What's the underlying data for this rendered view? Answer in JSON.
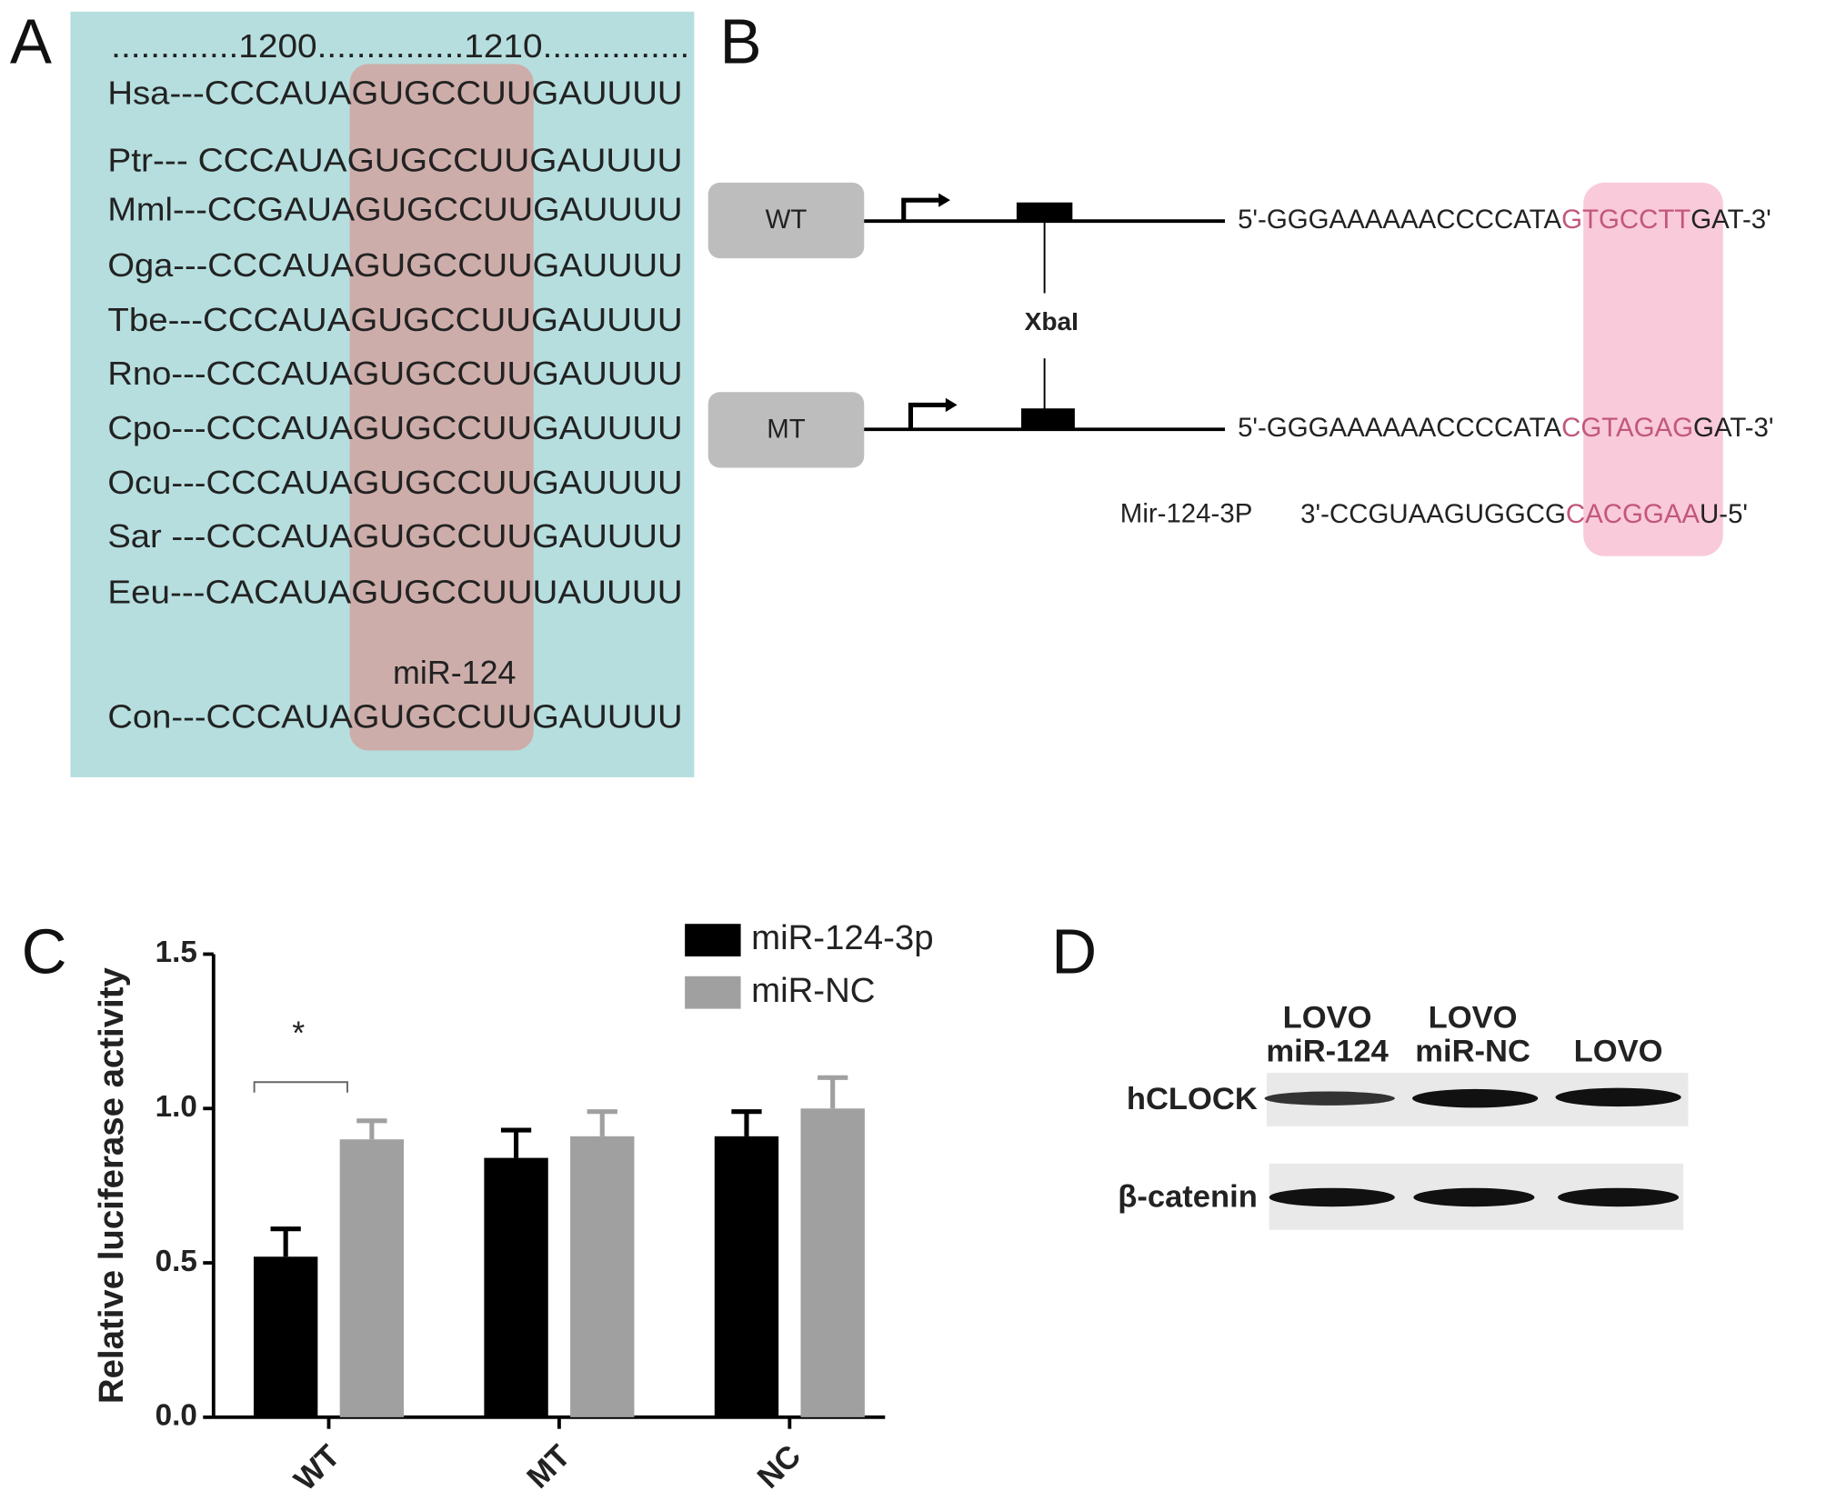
{
  "panel_labels": {
    "a": "A",
    "b": "B",
    "c": "C",
    "d": "D"
  },
  "panel_a": {
    "header": ".............1200...............1210...............",
    "rows": [
      "Hsa---CCCAUAGUGCCUUGAUUUU",
      "Ptr---  CCCAUAGUGCCUUGAUUUU",
      "Mml---CCGAUAGUGCCUUGAUUUU",
      "Oga---CCCAUAGUGCCUUGAUUUU",
      "Tbe---CCCAUAGUGCCUUGAUUUU",
      "Rno---CCCAUAGUGCCUUGAUUUU",
      "Cpo---CCCAUAGUGCCUUGAUUUU",
      "Ocu---CCCAUAGUGCCUUGAUUUU",
      "Sar ---CCCAUAGUGCCUUGAUUUU",
      "Eeu---CACAUAGUGCCUUUAUUUU",
      "Con---CCCAUAGUGCCUUGAUUUU"
    ],
    "highlight_label": "miR-124"
  },
  "panel_b": {
    "wt_label": "WT",
    "mt_label": "MT",
    "site_label": "XbaI",
    "wt_seq": [
      "5'-GGGAAAAAACCCCATA",
      "GTGCCTT",
      "GAT-3'"
    ],
    "mt_seq": [
      "5'-GGGAAAAAACCCCATA",
      "CGTAGAG",
      "GAT-3'"
    ],
    "mirna_name": "Mir-124-3P",
    "mirna_seq": [
      "3'-CCGUAAGUGGCG",
      "CACGGAA",
      "U-5'"
    ]
  },
  "chart_data": {
    "type": "bar",
    "y_label": "Relative luciferase activity",
    "categories": [
      "WT",
      "MT",
      "NC"
    ],
    "series": [
      {
        "name": "miR-124-3p",
        "color": "#000000",
        "values": [
          0.52,
          0.84,
          0.91
        ],
        "errors": [
          0.09,
          0.09,
          0.08
        ]
      },
      {
        "name": "miR-NC",
        "color": "#a0a0a0",
        "values": [
          0.9,
          0.91,
          1.0
        ],
        "errors": [
          0.06,
          0.08,
          0.1
        ]
      }
    ],
    "ylim": [
      0,
      1.5
    ],
    "yticks": [
      {
        "value": 0,
        "label": "0.0"
      },
      0.5,
      {
        "value": 1,
        "label": "1.0"
      },
      1.5
    ],
    "annotation": "*"
  },
  "panel_d": {
    "columns": [
      [
        "LOVO",
        "miR-124"
      ],
      [
        "LOVO",
        "miR-NC"
      ],
      [
        "LOVO"
      ]
    ],
    "rows": [
      "hCLOCK",
      "β-catenin"
    ]
  }
}
